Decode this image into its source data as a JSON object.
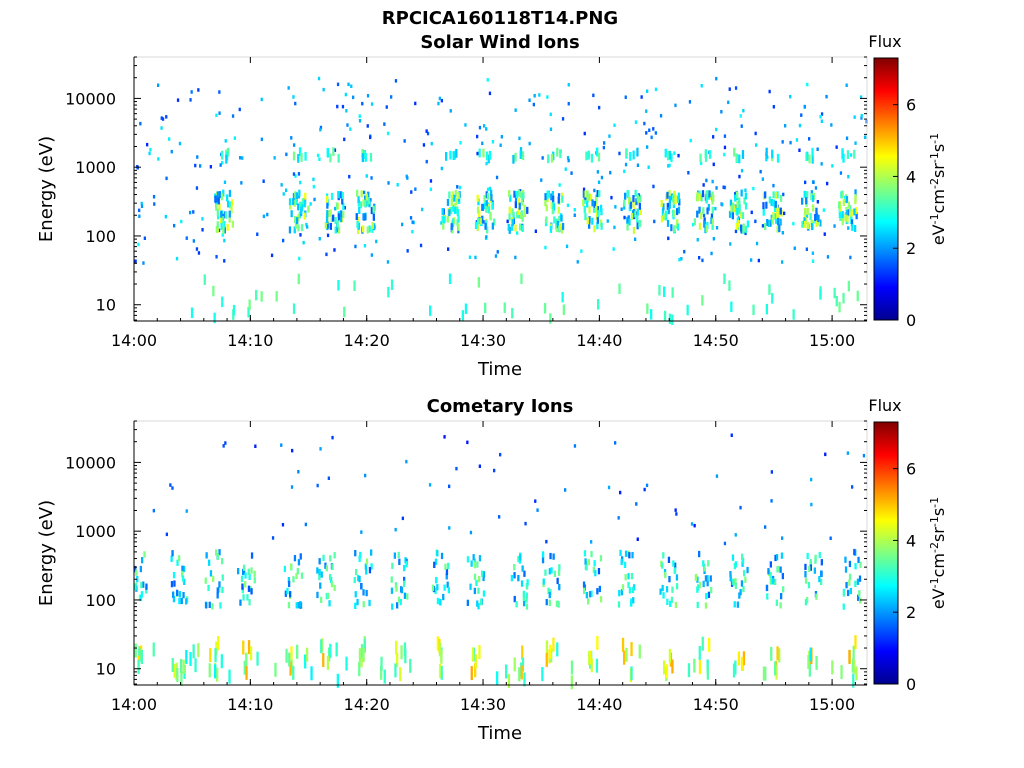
{
  "figure_title": "RPCICA160118T14.PNG",
  "colorbar": {
    "title": "Flux",
    "label": "eV-1cm-2sr-1s-1",
    "ticks": [
      "0",
      "2",
      "4",
      "6"
    ],
    "range": [
      0,
      7.3
    ],
    "colormap": "jet"
  },
  "chart_data": [
    {
      "type": "heatmap",
      "title": "Solar Wind Ions",
      "xlabel": "Time",
      "ylabel": "Energy (eV)",
      "x_ticks": [
        "14:00",
        "14:10",
        "14:20",
        "14:30",
        "14:40",
        "14:50",
        "15:00"
      ],
      "x_tick_minutes": [
        0,
        10,
        20,
        30,
        40,
        50,
        60
      ],
      "xlim_minutes": [
        0,
        63
      ],
      "y_scale": "log",
      "y_ticks": [
        "10",
        "100",
        "1000",
        "10000"
      ],
      "y_tick_values": [
        10,
        100,
        1000,
        10000
      ],
      "ylim": [
        5.8,
        40000
      ],
      "burst_minutes": [
        7.6,
        14.1,
        17.1,
        19.8,
        27.2,
        30.1,
        32.9,
        36.0,
        39.3,
        42.7,
        46.0,
        48.9,
        51.9,
        54.8,
        58.1,
        61.3
      ],
      "dominant_energy_eV": [
        120,
        1500
      ],
      "cell_values_range": [
        1.5,
        4.5
      ]
    },
    {
      "type": "heatmap",
      "title": "Cometary Ions",
      "xlabel": "Time",
      "ylabel": "Energy (eV)",
      "x_ticks": [
        "14:00",
        "14:10",
        "14:20",
        "14:30",
        "14:40",
        "14:50",
        "15:00"
      ],
      "x_tick_minutes": [
        0,
        10,
        20,
        30,
        40,
        50,
        60
      ],
      "xlim_minutes": [
        0,
        63
      ],
      "y_scale": "log",
      "y_ticks": [
        "10",
        "100",
        "1000",
        "10000"
      ],
      "y_tick_values": [
        10,
        100,
        1000,
        10000
      ],
      "ylim": [
        5.8,
        40000
      ],
      "burst_minutes": [
        0.3,
        3.8,
        6.8,
        9.6,
        13.6,
        16.4,
        19.6,
        22.8,
        26.3,
        29.3,
        33.0,
        35.8,
        39.3,
        42.3,
        45.9,
        48.9,
        51.9,
        55.0,
        58.3,
        61.6
      ],
      "dominant_energy_eV": [
        8,
        25
      ],
      "cell_values_range": [
        2.0,
        5.2
      ]
    }
  ]
}
